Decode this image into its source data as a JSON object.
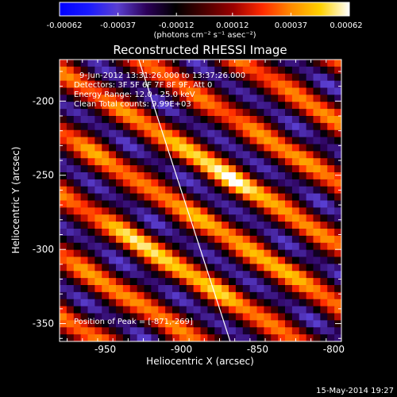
{
  "colorbar": {
    "tick_labels": [
      "-0.00062",
      "-0.00037",
      "-0.00012",
      "0.00012",
      "0.00037",
      "0.00062"
    ],
    "unit_label": "(photons cm⁻² s⁻¹ asec⁻²)",
    "colormap": [
      "#0000ff",
      "#1a1aff",
      "#5a3fd0",
      "#2b0058",
      "#000000",
      "#4a0000",
      "#9b0000",
      "#ff2a00",
      "#ff8c00",
      "#ffd200",
      "#ffffff"
    ]
  },
  "chart_data": {
    "type": "heatmap",
    "title": "Reconstructed RHESSI Image",
    "xlabel": "Heliocentric X (arcsec)",
    "ylabel": "Heliocentric Y (arcsec)",
    "xlim": [
      -980,
      -795
    ],
    "ylim": [
      -362,
      -172
    ],
    "x_ticks": [
      -950,
      -900,
      -850,
      -800
    ],
    "y_ticks": [
      -200,
      -250,
      -300,
      -350
    ],
    "x_tick_labels": [
      "-950",
      "-900",
      "-850",
      "-800"
    ],
    "y_tick_labels": [
      "-200",
      "-250",
      "-300",
      "-350"
    ],
    "color_range": [
      -0.00062,
      0.00062
    ],
    "limb_line": {
      "x": [
        -928,
        -868
      ],
      "y": [
        -172,
        -362
      ]
    },
    "peak": {
      "x": -871,
      "y": -269
    },
    "annotations": {
      "time": "9-Jun-2012 13:31:26.000 to 13:37:26.000",
      "detectors": "Detectors: 3F 5F 6F 7F 8F 9F, Att 0",
      "energy": "Energy Range: 12.0 - 25.0 keV",
      "clean": "Clean    Total counts: 9.99E+03",
      "peak_text": "Position of Peak = [-871,-269]"
    }
  },
  "footer": {
    "date": "15-May-2014 19:27"
  }
}
